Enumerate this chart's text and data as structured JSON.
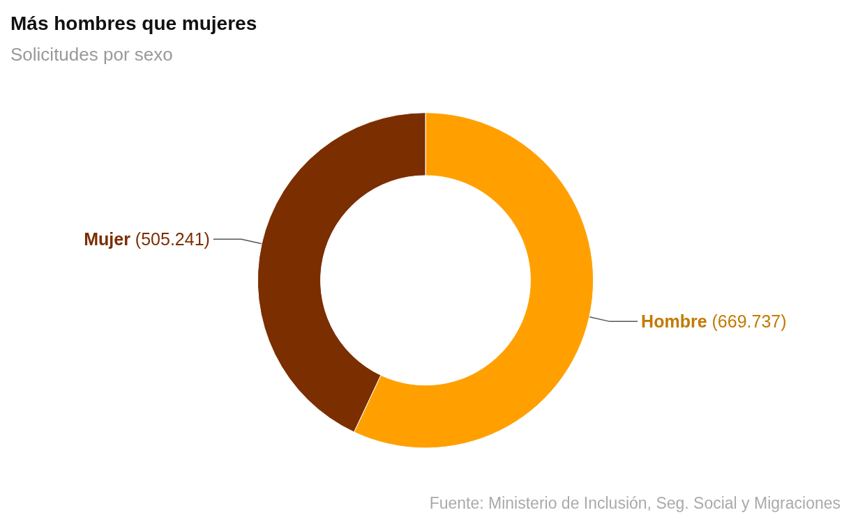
{
  "chart_data": {
    "type": "donut",
    "title": "Más hombres que mujeres",
    "subtitle": "Solicitudes por sexo",
    "categories": [
      "Hombre",
      "Mujer"
    ],
    "values": [
      669737,
      505241
    ],
    "value_labels": [
      "(669.737)",
      "(505.241)"
    ],
    "colors": [
      "#ffa000",
      "#7b2e00"
    ],
    "legend": false,
    "annotations": [
      "Fuente: Ministerio de Inclusión, Seg. Social y Migraciones"
    ]
  }
}
